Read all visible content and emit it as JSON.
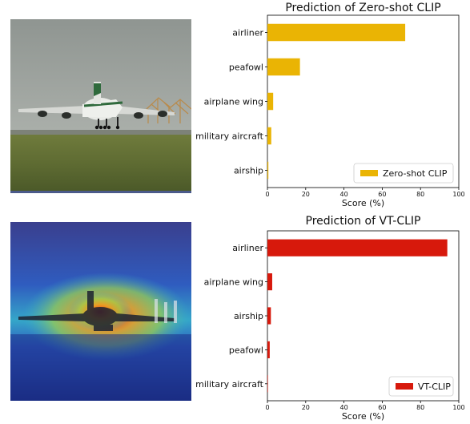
{
  "chart_data": [
    {
      "type": "bar",
      "orientation": "horizontal",
      "title": "Prediction of Zero-shot CLIP",
      "categories": [
        "airliner",
        "peafowl",
        "airplane wing",
        "military aircraft",
        "airship"
      ],
      "series": [
        {
          "name": "Zero-shot CLIP",
          "values": [
            72,
            17,
            3,
            2,
            0.5
          ]
        }
      ],
      "xlabel": "Score (%)",
      "xticks": [
        "0",
        "20",
        "40",
        "60",
        "80",
        "100"
      ],
      "xlim": [
        0,
        100
      ],
      "legend": "bottom-right",
      "color": "#eab404",
      "grid": false
    },
    {
      "type": "bar",
      "orientation": "horizontal",
      "title": "Prediction of VT-CLIP",
      "categories": [
        "airliner",
        "airplane wing",
        "airship",
        "peafowl",
        "military aircraft"
      ],
      "series": [
        {
          "name": "VT-CLIP",
          "values": [
            94,
            2.5,
            1.8,
            1.2,
            0.2
          ]
        }
      ],
      "xlabel": "Score (%)",
      "xticks": [
        "0",
        "20",
        "40",
        "60",
        "80",
        "100"
      ],
      "xlim": [
        0,
        100
      ],
      "legend": "bottom-right",
      "color": "#d7190c",
      "grid": false
    }
  ],
  "images": {
    "top": {
      "subject": "airliner taking off from runway"
    },
    "bottom": {
      "subject": "airliner with attention heatmap overlay"
    }
  }
}
